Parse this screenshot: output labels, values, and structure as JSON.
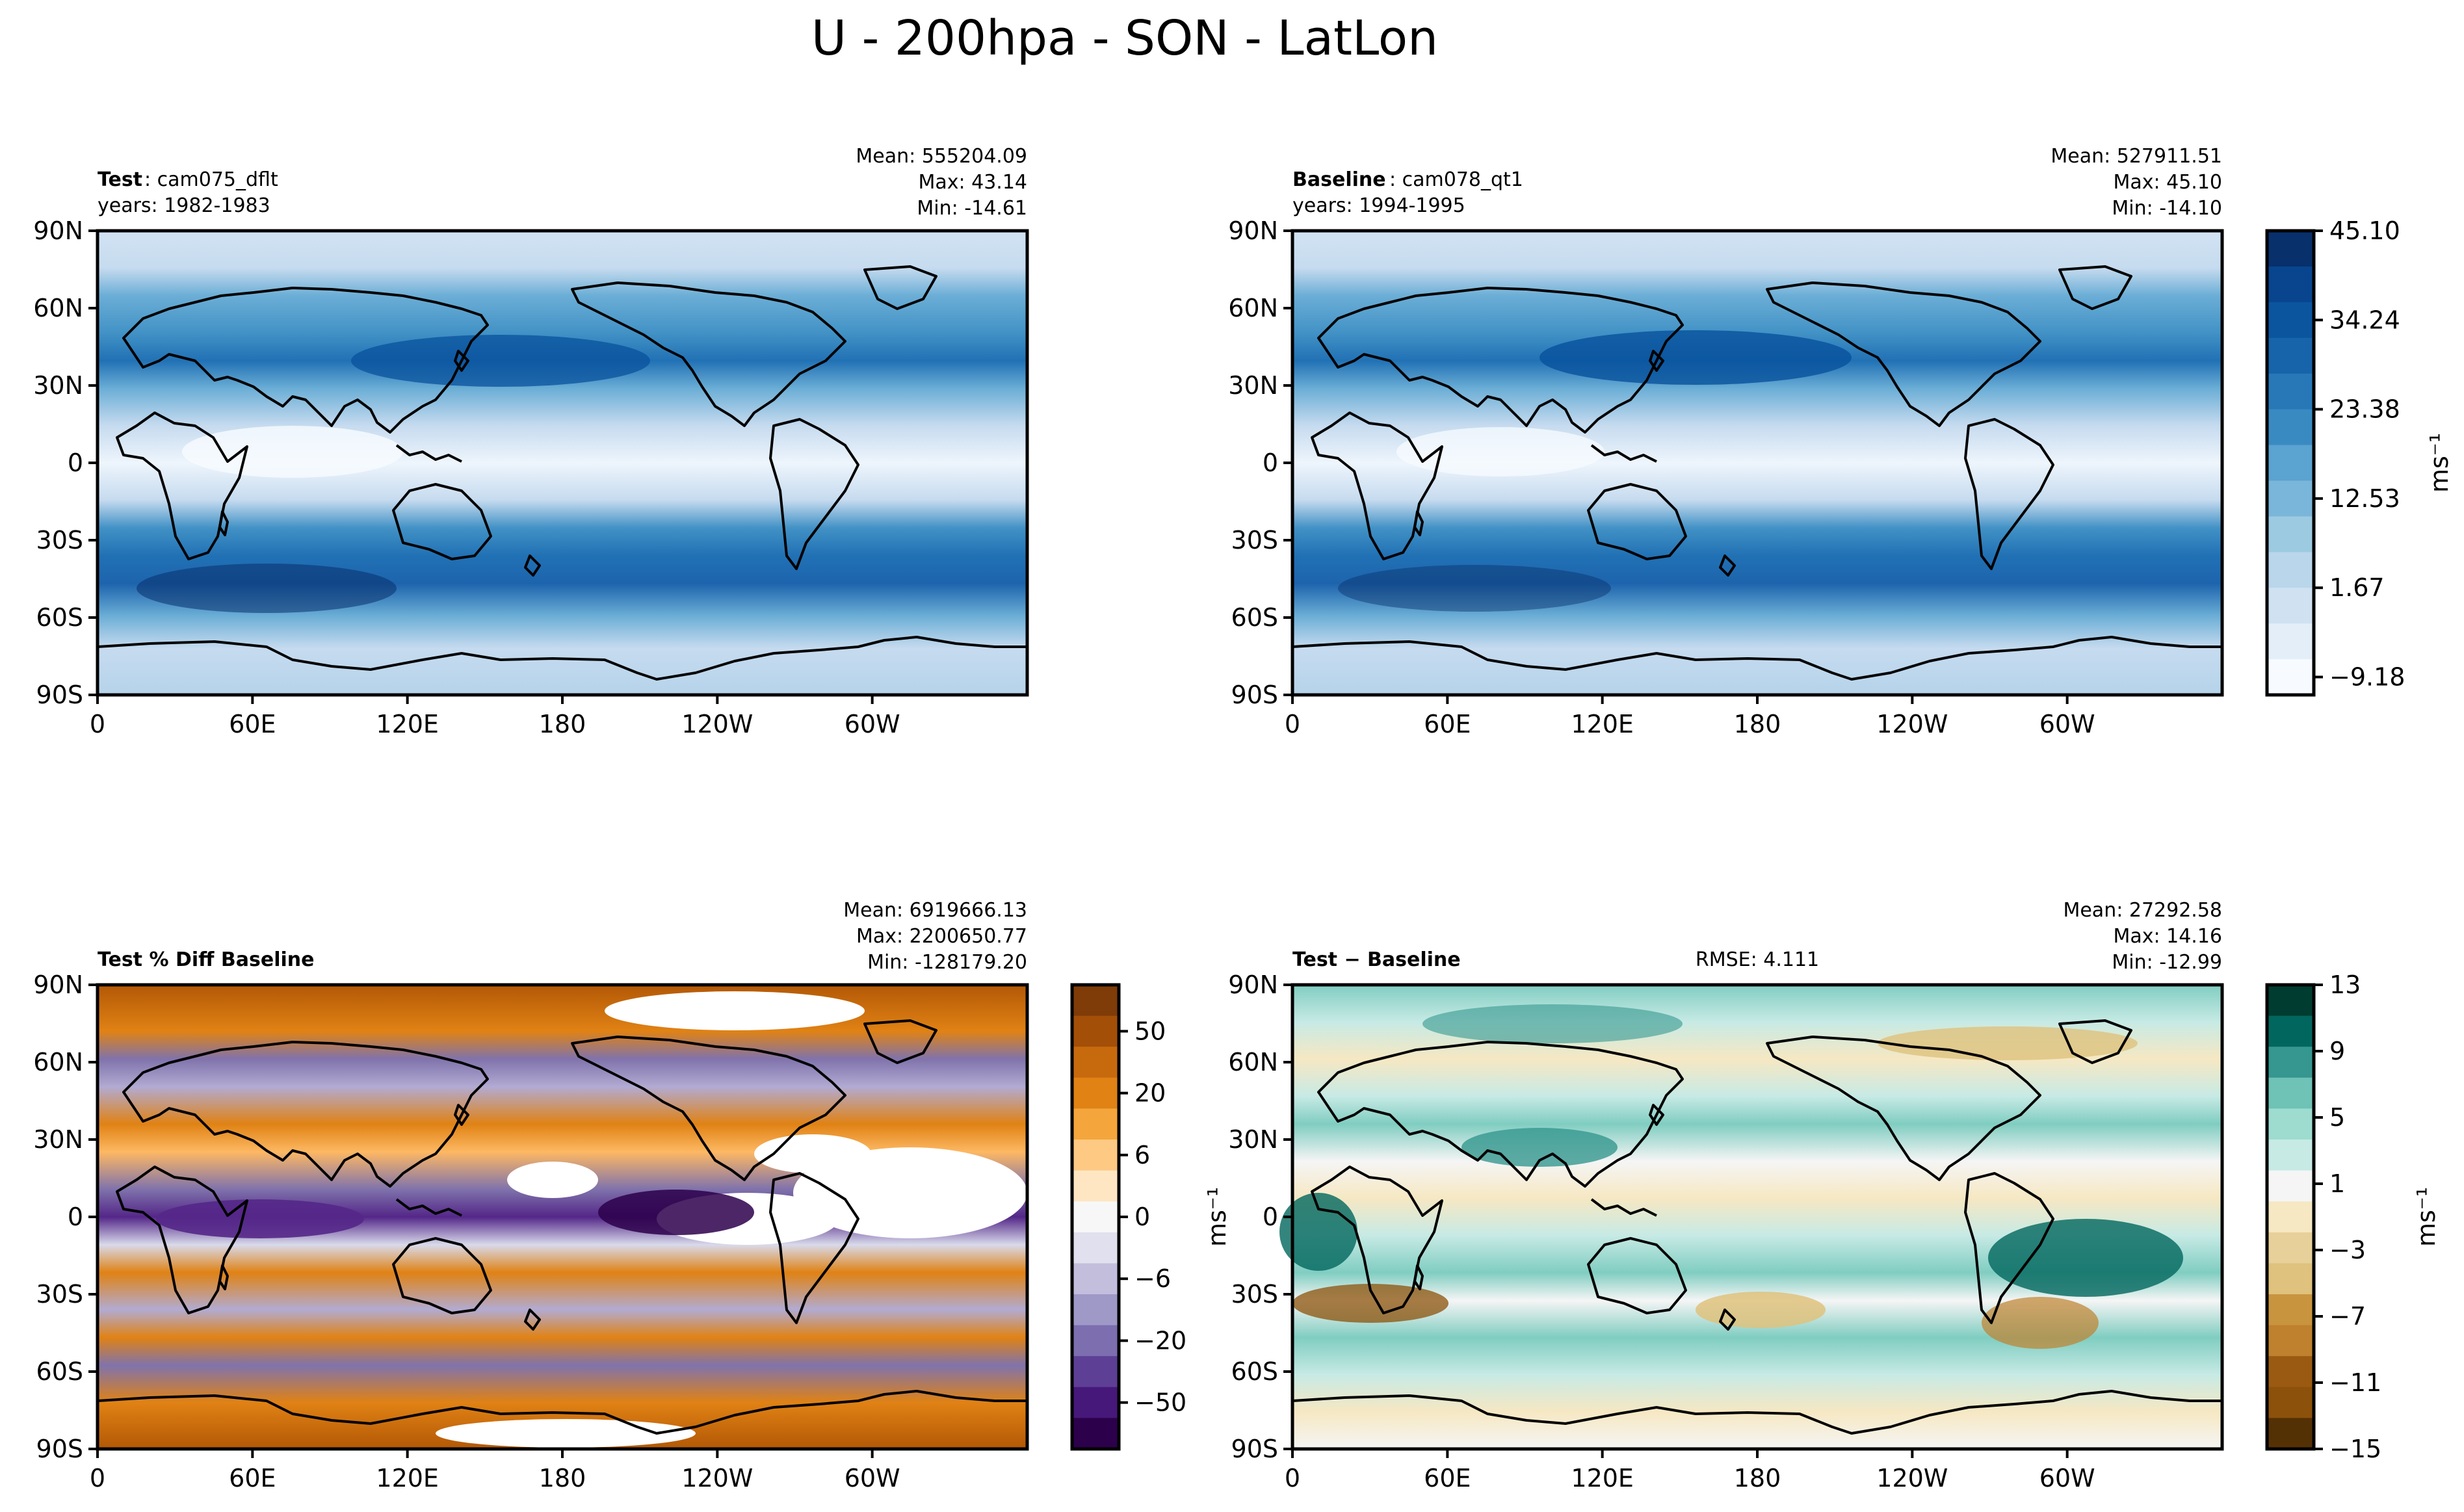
{
  "suptitle": "U - 200hpa - SON - LatLon",
  "axes": {
    "x_ticks": [
      "0",
      "60E",
      "120E",
      "180",
      "120W",
      "60W"
    ],
    "y_ticks": [
      "90N",
      "60N",
      "30N",
      "0",
      "30S",
      "60S",
      "90S"
    ]
  },
  "panels": {
    "test": {
      "title_bold": "Test",
      "title_rest": ": cam075_dflt",
      "years": "years: 1982-1983",
      "mean": "Mean: 555204.09",
      "max": "Max: 43.14",
      "min": "Min: -14.61"
    },
    "baseline": {
      "title_bold": "Baseline",
      "title_rest": ": cam078_qt1",
      "years": "years: 1994-1995",
      "mean": "Mean: 527911.51",
      "max": "Max: 45.10",
      "min": "Min: -14.10"
    },
    "pctdiff": {
      "title_bold": "Test % Diff Baseline",
      "mean": "Mean: 6919666.13",
      "max": "Max: 2200650.77",
      "min": "Min: -128179.20"
    },
    "diff": {
      "title_bold": "Test − Baseline",
      "rmse": "RMSE: 4.111",
      "mean": "Mean: 27292.58",
      "max": "Max: 14.16",
      "min": "Min: -12.99"
    }
  },
  "colorbars": {
    "blues": {
      "ticks": [
        "45.10",
        "34.24",
        "23.38",
        "12.53",
        "1.67",
        "−9.18"
      ],
      "unit": "ms⁻¹"
    },
    "puor": {
      "ticks": [
        "50",
        "20",
        "6",
        "0",
        "−6",
        "−20",
        "−50"
      ],
      "unit": "ms⁻¹"
    },
    "brbg": {
      "ticks": [
        "13",
        "9",
        "5",
        "1",
        "−3",
        "−7",
        "−11",
        "−15"
      ],
      "unit": "ms⁻¹"
    }
  },
  "chart_data": [
    {
      "type": "heatmap",
      "title": "Test: cam075_dflt",
      "ylim": [
        -90,
        90
      ],
      "colormap": "Blues",
      "value_range": [
        -14.61,
        43.14
      ],
      "stats": {
        "mean": 555204.09,
        "max": 43.14,
        "min": -14.61
      }
    },
    {
      "type": "heatmap",
      "title": "Baseline: cam078_qt1",
      "ylim": [
        -90,
        90
      ],
      "colormap": "Blues",
      "value_range": [
        -14.1,
        45.1
      ],
      "stats": {
        "mean": 527911.51,
        "max": 45.1,
        "min": -14.1
      }
    },
    {
      "type": "heatmap",
      "title": "Test % Diff Baseline",
      "ylim": [
        -90,
        90
      ],
      "colormap": "PuOr",
      "stats": {
        "mean": 6919666.13,
        "max": 2200650.77,
        "min": -128179.2
      }
    },
    {
      "type": "heatmap",
      "title": "Test − Baseline",
      "ylim": [
        -90,
        90
      ],
      "colormap": "BrBG",
      "stats": {
        "mean": 27292.58,
        "max": 14.16,
        "min": -12.99,
        "rmse": 4.111
      }
    }
  ]
}
